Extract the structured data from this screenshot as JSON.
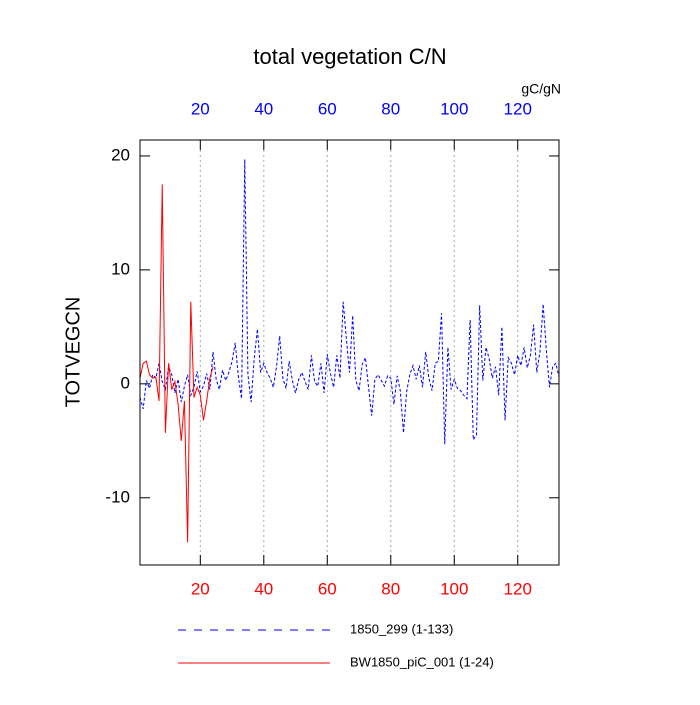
{
  "chart_data": {
    "type": "line",
    "title": "total vegetation C/N",
    "ylabel": "TOTVEGCN",
    "x2label": "gC/gN",
    "xlim": [
      1,
      133
    ],
    "ylim": [
      -15.9,
      21.4
    ],
    "xticks": [
      20,
      40,
      60,
      80,
      100,
      120
    ],
    "x2ticks": [
      20,
      40,
      60,
      80,
      100,
      120
    ],
    "yticks": [
      -10,
      0,
      10,
      20
    ],
    "xtick_color": "#ff0000",
    "x2tick_color": "#0000ff",
    "grid": true,
    "series": [
      {
        "name": "1850_299 (1-133)",
        "color": "#0000ff",
        "dashed": true,
        "axis": "x2",
        "x": [
          1,
          2,
          3,
          4,
          5,
          6,
          7,
          8,
          9,
          10,
          11,
          12,
          13,
          14,
          15,
          16,
          17,
          18,
          19,
          20,
          21,
          22,
          23,
          24,
          25,
          26,
          27,
          28,
          29,
          30,
          31,
          32,
          33,
          34,
          35,
          36,
          37,
          38,
          39,
          40,
          41,
          42,
          43,
          44,
          45,
          46,
          47,
          48,
          49,
          50,
          51,
          52,
          53,
          54,
          55,
          56,
          57,
          58,
          59,
          60,
          61,
          62,
          63,
          64,
          65,
          66,
          67,
          68,
          69,
          70,
          71,
          72,
          73,
          74,
          75,
          76,
          77,
          78,
          79,
          80,
          81,
          82,
          83,
          84,
          85,
          86,
          87,
          88,
          89,
          90,
          91,
          92,
          93,
          94,
          95,
          96,
          97,
          98,
          99,
          100,
          101,
          102,
          103,
          104,
          105,
          106,
          107,
          108,
          109,
          110,
          111,
          112,
          113,
          114,
          115,
          116,
          117,
          118,
          119,
          120,
          121,
          122,
          123,
          124,
          125,
          126,
          127,
          128,
          129,
          130,
          131,
          132,
          133
        ],
        "values": [
          -1.2,
          -2.2,
          0.3,
          -0.4,
          0.8,
          0.5,
          1.8,
          0.2,
          -0.5,
          1.5,
          0.8,
          -0.8,
          0.4,
          -1.6,
          -0.2,
          0.8,
          -1.0,
          -0.3,
          1.1,
          -0.7,
          -0.2,
          0.9,
          -0.5,
          2.8,
          0.4,
          -0.5,
          1.2,
          0.3,
          1.0,
          2.0,
          3.6,
          0.6,
          -1.3,
          19.7,
          0.8,
          -1.6,
          2.3,
          4.8,
          1.0,
          1.8,
          1.0,
          0.5,
          -0.3,
          1.5,
          4.2,
          0.5,
          -0.4,
          2.0,
          0.3,
          -0.8,
          0.4,
          1.0,
          0.2,
          -0.5,
          2.5,
          0.2,
          -0.2,
          1.8,
          -0.8,
          2.6,
          0.9,
          -0.3,
          2.5,
          0.5,
          7.2,
          4.0,
          1.0,
          6.0,
          0.3,
          -0.6,
          1.7,
          2.3,
          -0.3,
          -2.8,
          0.4,
          0.8,
          0.3,
          -0.2,
          0.7,
          0.5,
          -1.8,
          0.7,
          -0.6,
          -4.3,
          -0.7,
          0.8,
          1.6,
          0.4,
          1.6,
          -0.3,
          2.8,
          0.5,
          -0.6,
          1.8,
          2.0,
          6.2,
          -5.3,
          3.2,
          -0.5,
          0.4,
          -0.4,
          -0.6,
          -1.0,
          -1.3,
          5.6,
          -4.9,
          -4.5,
          6.9,
          0.3,
          3.2,
          2.2,
          0.5,
          1.5,
          -1.0,
          5.0,
          -3.2,
          2.3,
          1.8,
          0.8,
          2.5,
          1.6,
          3.2,
          1.4,
          2.5,
          5.2,
          1.0,
          2.8,
          7.0,
          3.0,
          -0.3,
          1.5,
          1.8,
          0.6
        ]
      },
      {
        "name": "BW1850_piC_001 (1-24)",
        "color": "#ff0000",
        "dashed": false,
        "axis": "x",
        "x": [
          1,
          2,
          3,
          4,
          5,
          6,
          7,
          8,
          9,
          10,
          11,
          12,
          13,
          14,
          15,
          16,
          17,
          18,
          19,
          20,
          21,
          22,
          23,
          24
        ],
        "values": [
          0.5,
          1.8,
          2.0,
          0.8,
          0.5,
          0.6,
          -1.5,
          17.5,
          -4.3,
          1.8,
          -0.5,
          0.2,
          -1.8,
          -5.0,
          -1.5,
          -13.9,
          7.2,
          -1.2,
          -0.3,
          -1.0,
          -3.2,
          -1.5,
          0.5,
          1.5
        ]
      }
    ]
  }
}
